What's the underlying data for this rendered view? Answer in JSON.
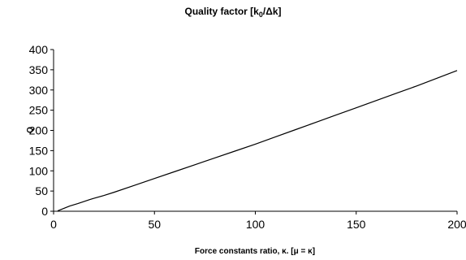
{
  "chart_data": {
    "type": "line",
    "title": "Quality factor [k0/Δk]",
    "title_main": "Quality factor [k",
    "title_sub": "0",
    "title_tail": "/Δk]",
    "xlabel": "Force constants ratio, κ. [μ = κ]",
    "ylabel": "Q",
    "xlim": [
      0,
      200
    ],
    "ylim": [
      0,
      400
    ],
    "xticks": [
      0,
      50,
      100,
      150,
      200
    ],
    "yticks": [
      0,
      50,
      100,
      150,
      200,
      250,
      300,
      350,
      400
    ],
    "grid": false,
    "legend": "none",
    "line_color": "#000000",
    "series": [
      {
        "x": [
          2,
          3,
          4,
          5,
          6,
          7,
          8,
          10,
          12,
          15,
          18,
          20,
          25,
          30,
          40,
          50,
          60,
          70,
          80,
          90,
          100,
          110,
          120,
          130,
          140,
          150,
          160,
          170,
          180,
          190,
          200
        ],
        "values": [
          1,
          3,
          5,
          7,
          9,
          11,
          13,
          16,
          19,
          24,
          29,
          32,
          39,
          47,
          64,
          81,
          98,
          115,
          132,
          149,
          166,
          184,
          202,
          220,
          238,
          256,
          274,
          292,
          310,
          329,
          348
        ]
      }
    ]
  }
}
